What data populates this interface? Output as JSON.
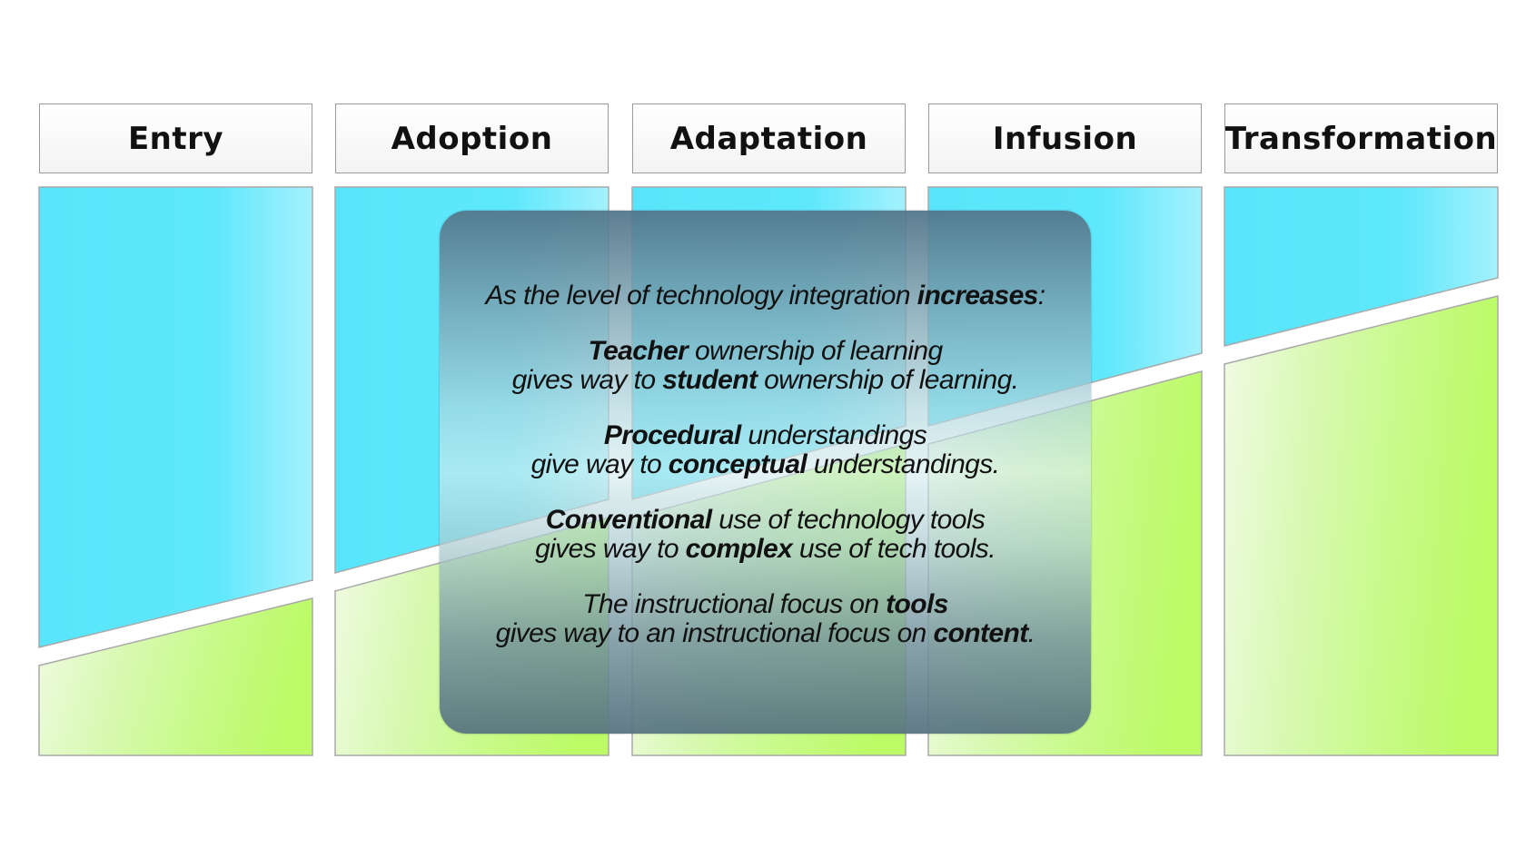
{
  "stages": [
    {
      "label": "Entry"
    },
    {
      "label": "Adoption"
    },
    {
      "label": "Adaptation"
    },
    {
      "label": "Infusion"
    },
    {
      "label": "Transformation"
    }
  ],
  "colors": {
    "teacher_band": "#5de6fb",
    "student_band_light": "#eefcde",
    "student_band_dark": "#bdfb6a",
    "overlay_top": "#52768a",
    "overlay_mid": "#d6ecee",
    "header_border": "#9a9a9a"
  },
  "overlay": {
    "intro": {
      "pre": "As the level of technology integration ",
      "bold": "increases",
      "post": ":"
    },
    "teacher": {
      "line1_bold": "Teacher",
      "line1_rest": " ownership of learning",
      "line2_pre": "gives way to ",
      "line2_bold": "student",
      "line2_rest": " ownership of learning."
    },
    "procedural": {
      "line1_bold": "Procedural",
      "line1_rest": " understandings",
      "line2_pre": "give way to ",
      "line2_bold": "conceptual",
      "line2_rest": " understandings."
    },
    "conventional": {
      "line1_bold": "Conventional",
      "line1_rest": " use of technology tools",
      "line2_pre": "gives way to ",
      "line2_bold": "complex",
      "line2_rest": " use of tech tools."
    },
    "focus": {
      "line1_pre": "The instructional focus on ",
      "line1_bold": "tools",
      "line2_pre": "gives way to an instructional focus on ",
      "line2_bold": "content",
      "line2_post": "."
    }
  }
}
